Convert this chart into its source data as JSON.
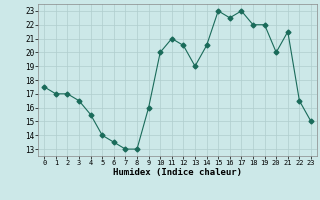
{
  "x": [
    0,
    1,
    2,
    3,
    4,
    5,
    6,
    7,
    8,
    9,
    10,
    11,
    12,
    13,
    14,
    15,
    16,
    17,
    18,
    19,
    20,
    21,
    22,
    23
  ],
  "y": [
    17.5,
    17.0,
    17.0,
    16.5,
    15.5,
    14.0,
    13.5,
    13.0,
    13.0,
    16.0,
    20.0,
    21.0,
    20.5,
    19.0,
    20.5,
    23.0,
    22.5,
    23.0,
    22.0,
    22.0,
    20.0,
    21.5,
    16.5,
    15.0
  ],
  "line_color": "#1a6b5a",
  "marker": "D",
  "markersize": 2.5,
  "bg_color": "#cce8e8",
  "grid_color": "#b0cece",
  "xlabel": "Humidex (Indice chaleur)",
  "xlim": [
    -0.5,
    23.5
  ],
  "ylim": [
    12.5,
    23.5
  ],
  "yticks": [
    13,
    14,
    15,
    16,
    17,
    18,
    19,
    20,
    21,
    22,
    23
  ],
  "xticks": [
    0,
    1,
    2,
    3,
    4,
    5,
    6,
    7,
    8,
    9,
    10,
    11,
    12,
    13,
    14,
    15,
    16,
    17,
    18,
    19,
    20,
    21,
    22,
    23
  ]
}
